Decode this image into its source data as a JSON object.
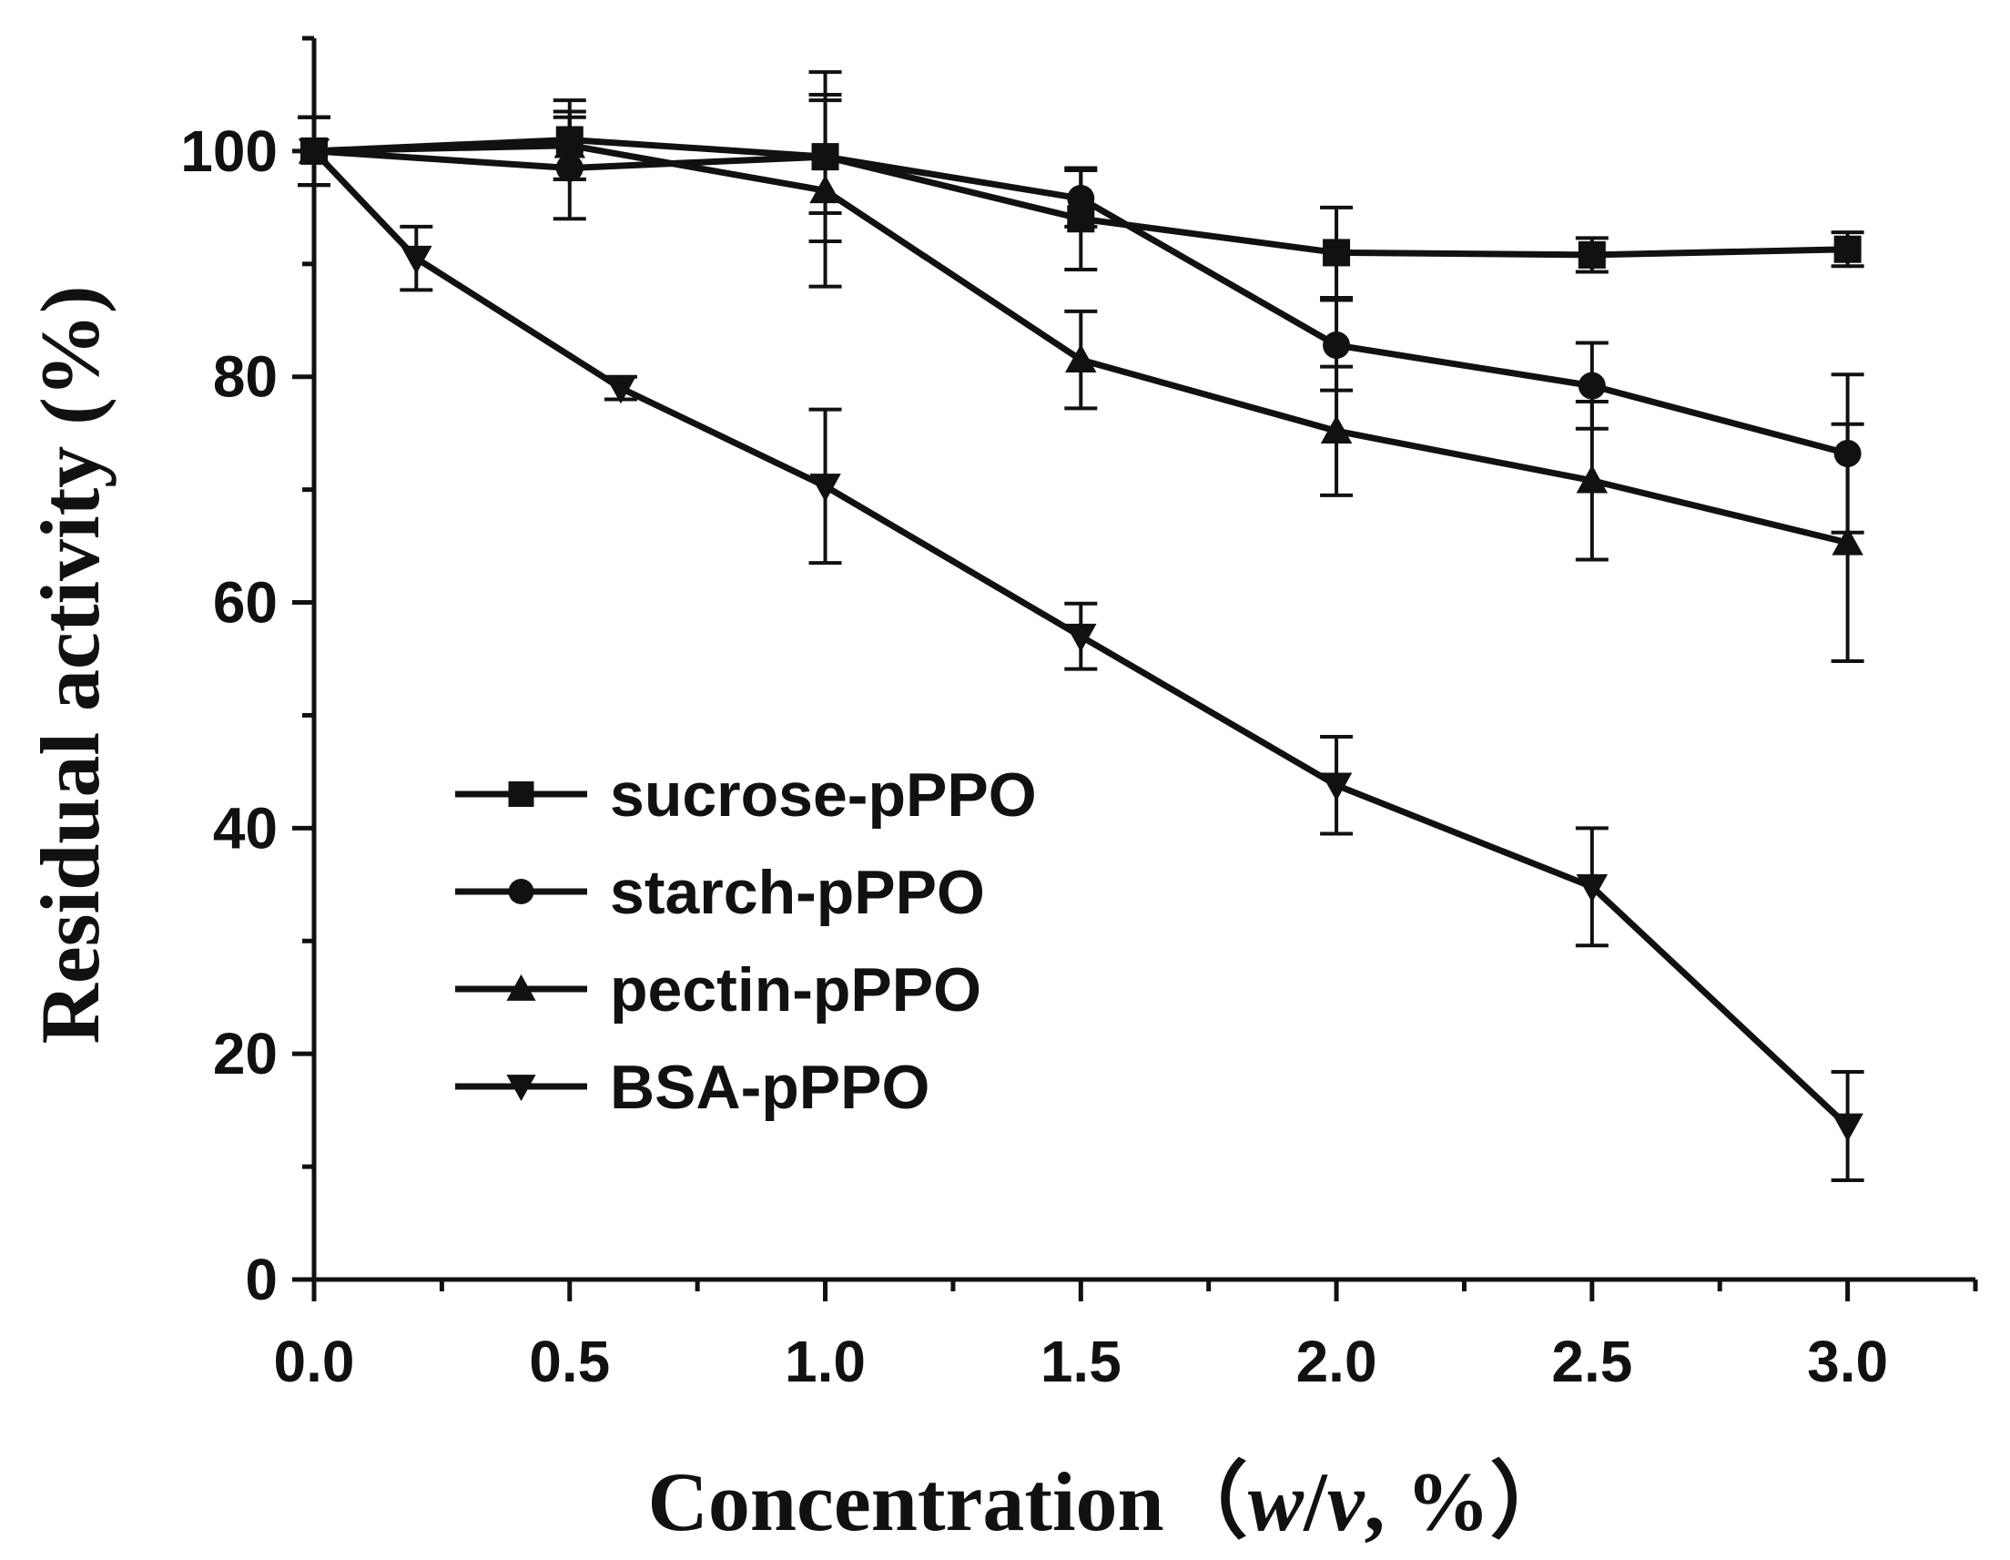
{
  "chart_data": {
    "type": "line",
    "title": "",
    "xlabel": "Concentration",
    "xlabel_paren": "（",
    "xlabel_italic_w": "w",
    "xlabel_slash": "/",
    "xlabel_italic_v": "v",
    "xlabel_tail": ", %）",
    "ylabel": "Residual activity (%)",
    "xlim": [
      0,
      3.25
    ],
    "ylim": [
      0,
      110
    ],
    "xticks": [
      0.0,
      0.5,
      1.0,
      1.5,
      2.0,
      2.5,
      3.0
    ],
    "xtick_labels": [
      "0.0",
      "0.5",
      "1.0",
      "1.5",
      "2.0",
      "2.5",
      "3.0"
    ],
    "yticks": [
      0,
      20,
      40,
      60,
      80,
      100
    ],
    "ytick_labels": [
      "0",
      "20",
      "40",
      "60",
      "80",
      "100"
    ],
    "legend_position": "center-left",
    "series": [
      {
        "name": "sucrose-pPPO",
        "marker": "square",
        "x": [
          0.0,
          0.5,
          1.0,
          1.5,
          2.0,
          2.5,
          3.0
        ],
        "values": [
          100,
          101,
          99.5,
          94,
          91,
          90.8,
          91.3
        ],
        "errors": [
          3,
          3.5,
          5,
          4.5,
          4,
          1.5,
          1.5
        ]
      },
      {
        "name": "starch-pPPO",
        "marker": "circle",
        "x": [
          0.0,
          0.5,
          1.0,
          1.5,
          2.0,
          2.5,
          3.0
        ],
        "values": [
          100,
          98.5,
          99.5,
          95.8,
          82.8,
          79.2,
          73.2
        ],
        "errors": [
          3,
          4.5,
          7.5,
          2.5,
          4,
          3.8,
          7
        ]
      },
      {
        "name": "pectin-pPPO",
        "marker": "triangle-up",
        "x": [
          0.0,
          0.5,
          1.0,
          1.5,
          2.0,
          2.5,
          3.0
        ],
        "values": [
          100,
          100.5,
          96.5,
          81.5,
          75.2,
          70.8,
          65.3
        ],
        "errors": [
          3,
          3,
          8.5,
          4.3,
          5.7,
          7,
          10.5
        ]
      },
      {
        "name": "BSA-pPPO",
        "marker": "triangle-down",
        "x": [
          0.0,
          0.2,
          0.6,
          1.0,
          1.5,
          2.0,
          2.5,
          3.0
        ],
        "values": [
          100,
          90.5,
          79,
          70.3,
          57,
          43.8,
          34.8,
          13.6
        ],
        "errors": [
          3,
          2.8,
          1,
          6.8,
          2.9,
          4.3,
          5.2,
          4.8
        ]
      }
    ]
  }
}
